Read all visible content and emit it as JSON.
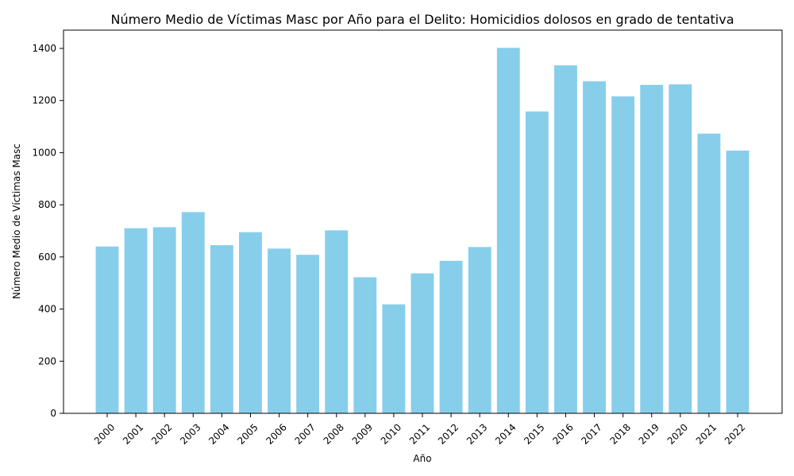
{
  "chart_data": {
    "type": "bar",
    "title": "Número Medio de Víctimas Masc por Año para el Delito: Homicidios dolosos en grado de tentativa",
    "xlabel": "Año",
    "ylabel": "Número Medio de Víctimas Masc",
    "categories": [
      "2000",
      "2001",
      "2002",
      "2003",
      "2004",
      "2005",
      "2006",
      "2007",
      "2008",
      "2009",
      "2010",
      "2011",
      "2012",
      "2013",
      "2014",
      "2015",
      "2016",
      "2017",
      "2018",
      "2019",
      "2020",
      "2021",
      "2022"
    ],
    "values": [
      640,
      710,
      714,
      772,
      645,
      695,
      632,
      608,
      702,
      522,
      418,
      537,
      585,
      638,
      1402,
      1158,
      1335,
      1274,
      1216,
      1260,
      1262,
      1073,
      1008
    ],
    "ylim": [
      0,
      1470
    ],
    "yticks": [
      0,
      200,
      400,
      600,
      800,
      1000,
      1200,
      1400
    ],
    "bar_color": "#87ceeb",
    "grid": false,
    "legend": "none"
  }
}
